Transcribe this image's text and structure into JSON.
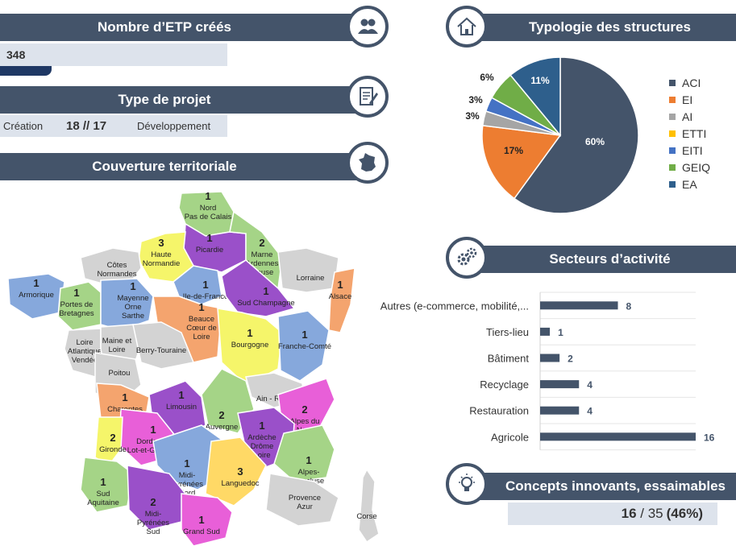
{
  "etp": {
    "title": "Nombre d’ETP créés",
    "value": "348"
  },
  "projet": {
    "title": "Type de projet",
    "creation_label": "Création",
    "ratio": "18 // 17",
    "developpement_label": "Développement"
  },
  "territoire": {
    "title": "Couverture territoriale"
  },
  "typologie": {
    "title": "Typologie des structures"
  },
  "secteurs": {
    "title": "Secteurs d’activité"
  },
  "concepts": {
    "title": "Concepts innovants, essaimables",
    "value_a": "16",
    "sep": " / ",
    "value_b": "35",
    "pct": "(46%)"
  },
  "colors": {
    "banner": "#44546a",
    "value_bg": "#dde3ec",
    "bar": "#44546a"
  },
  "icons": {
    "etp": "people-icon",
    "projet": "document-pen-icon",
    "territoire": "france-map-icon",
    "typologie": "house-icon",
    "secteurs": "gears-icon",
    "concepts": "lightbulb-icon"
  },
  "regions": [
    {
      "name": "Nord\nPas de Calais",
      "count": "1",
      "color": "#a5d487"
    },
    {
      "name": "Picardie",
      "count": "1",
      "color": "#9a50c9"
    },
    {
      "name": "Haute\nNormandie",
      "count": "3",
      "color": "#f5f56a"
    },
    {
      "name": "Côtes\nNormandes",
      "count": "",
      "color": "#d3d3d3"
    },
    {
      "name": "Marne\nArdennes\nMeuse",
      "count": "2",
      "color": "#a5d487"
    },
    {
      "name": "Lorraine",
      "count": "",
      "color": "#d3d3d3"
    },
    {
      "name": "Alsace",
      "count": "1",
      "color": "#f4a46e"
    },
    {
      "name": "Armorique",
      "count": "1",
      "color": "#86a8dc"
    },
    {
      "name": "Portes de\nBretagnes",
      "count": "1",
      "color": "#a5d487"
    },
    {
      "name": "Mayenne\nOrne\nSarthe",
      "count": "1",
      "color": "#86a8dc"
    },
    {
      "name": "Ile-de-France",
      "count": "1",
      "color": "#86a8dc"
    },
    {
      "name": "Sud Champagne",
      "count": "1",
      "color": "#9a50c9"
    },
    {
      "name": "Beauce\nCœur de\nLoire",
      "count": "1",
      "color": "#f4a46e"
    },
    {
      "name": "Loire\nAtlantique\nVendée",
      "count": "",
      "color": "#d3d3d3"
    },
    {
      "name": "Maine et\nLoire",
      "count": "",
      "color": "#d3d3d3"
    },
    {
      "name": "Berry-Touraine",
      "count": "",
      "color": "#d3d3d3"
    },
    {
      "name": "Bourgogne",
      "count": "1",
      "color": "#f5f56a"
    },
    {
      "name": "Franche-Comté",
      "count": "1",
      "color": "#86a8dc"
    },
    {
      "name": "Poitou",
      "count": "",
      "color": "#d3d3d3"
    },
    {
      "name": "Charentes",
      "count": "1",
      "color": "#f4a46e"
    },
    {
      "name": "Limousin",
      "count": "1",
      "color": "#9a50c9"
    },
    {
      "name": "Auvergne",
      "count": "2",
      "color": "#a5d487"
    },
    {
      "name": "Ain - Rhône",
      "count": "",
      "color": "#d3d3d3"
    },
    {
      "name": "Alpes du\nNord",
      "count": "2",
      "color": "#e85fd8"
    },
    {
      "name": "Ardèche\nDrôme\nLoire",
      "count": "1",
      "color": "#9a50c9"
    },
    {
      "name": "Dordogne\nLot-et-Garonne",
      "count": "1",
      "color": "#e85fd8"
    },
    {
      "name": "Gironde",
      "count": "2",
      "color": "#f5f56a"
    },
    {
      "name": "Midi-\nPyrénées\nNord",
      "count": "1",
      "color": "#86a8dc"
    },
    {
      "name": "Languedoc",
      "count": "3",
      "color": "#ffd966"
    },
    {
      "name": "Alpes-\nVaucluse",
      "count": "1",
      "color": "#a5d487"
    },
    {
      "name": "Sud\nAquitaine",
      "count": "1",
      "color": "#a5d487"
    },
    {
      "name": "Midi-\nPyrénées\nSud",
      "count": "2",
      "color": "#9a50c9"
    },
    {
      "name": "Grand Sud",
      "count": "1",
      "color": "#e85fd8"
    },
    {
      "name": "Provence\nAzur",
      "count": "",
      "color": "#d3d3d3"
    },
    {
      "name": "Corse",
      "count": "",
      "color": "#d3d3d3"
    }
  ],
  "chart_data": [
    {
      "type": "pie",
      "title": "Typologie des structures",
      "categories": [
        "ACI",
        "EI",
        "AI",
        "ETTI",
        "EITI",
        "GEIQ",
        "EA"
      ],
      "values": [
        60,
        17,
        3,
        0,
        3,
        6,
        11
      ],
      "labels": [
        "60%",
        "17%",
        "3%",
        "",
        "3%",
        "6%",
        "11%"
      ],
      "colors": [
        "#44546a",
        "#ed7d31",
        "#a5a5a5",
        "#ffc000",
        "#4472c4",
        "#70ad47",
        "#2e5f8c"
      ],
      "legend": "right"
    },
    {
      "type": "bar",
      "orientation": "horizontal",
      "title": "Secteurs d’activité",
      "categories": [
        "Autres (e-commerce, mobilité,...",
        "Tiers-lieu",
        "Bâtiment",
        "Recyclage",
        "Restauration",
        "Agricole"
      ],
      "values": [
        8,
        1,
        2,
        4,
        4,
        16
      ],
      "xlim": [
        0,
        16
      ],
      "grid": true
    }
  ]
}
